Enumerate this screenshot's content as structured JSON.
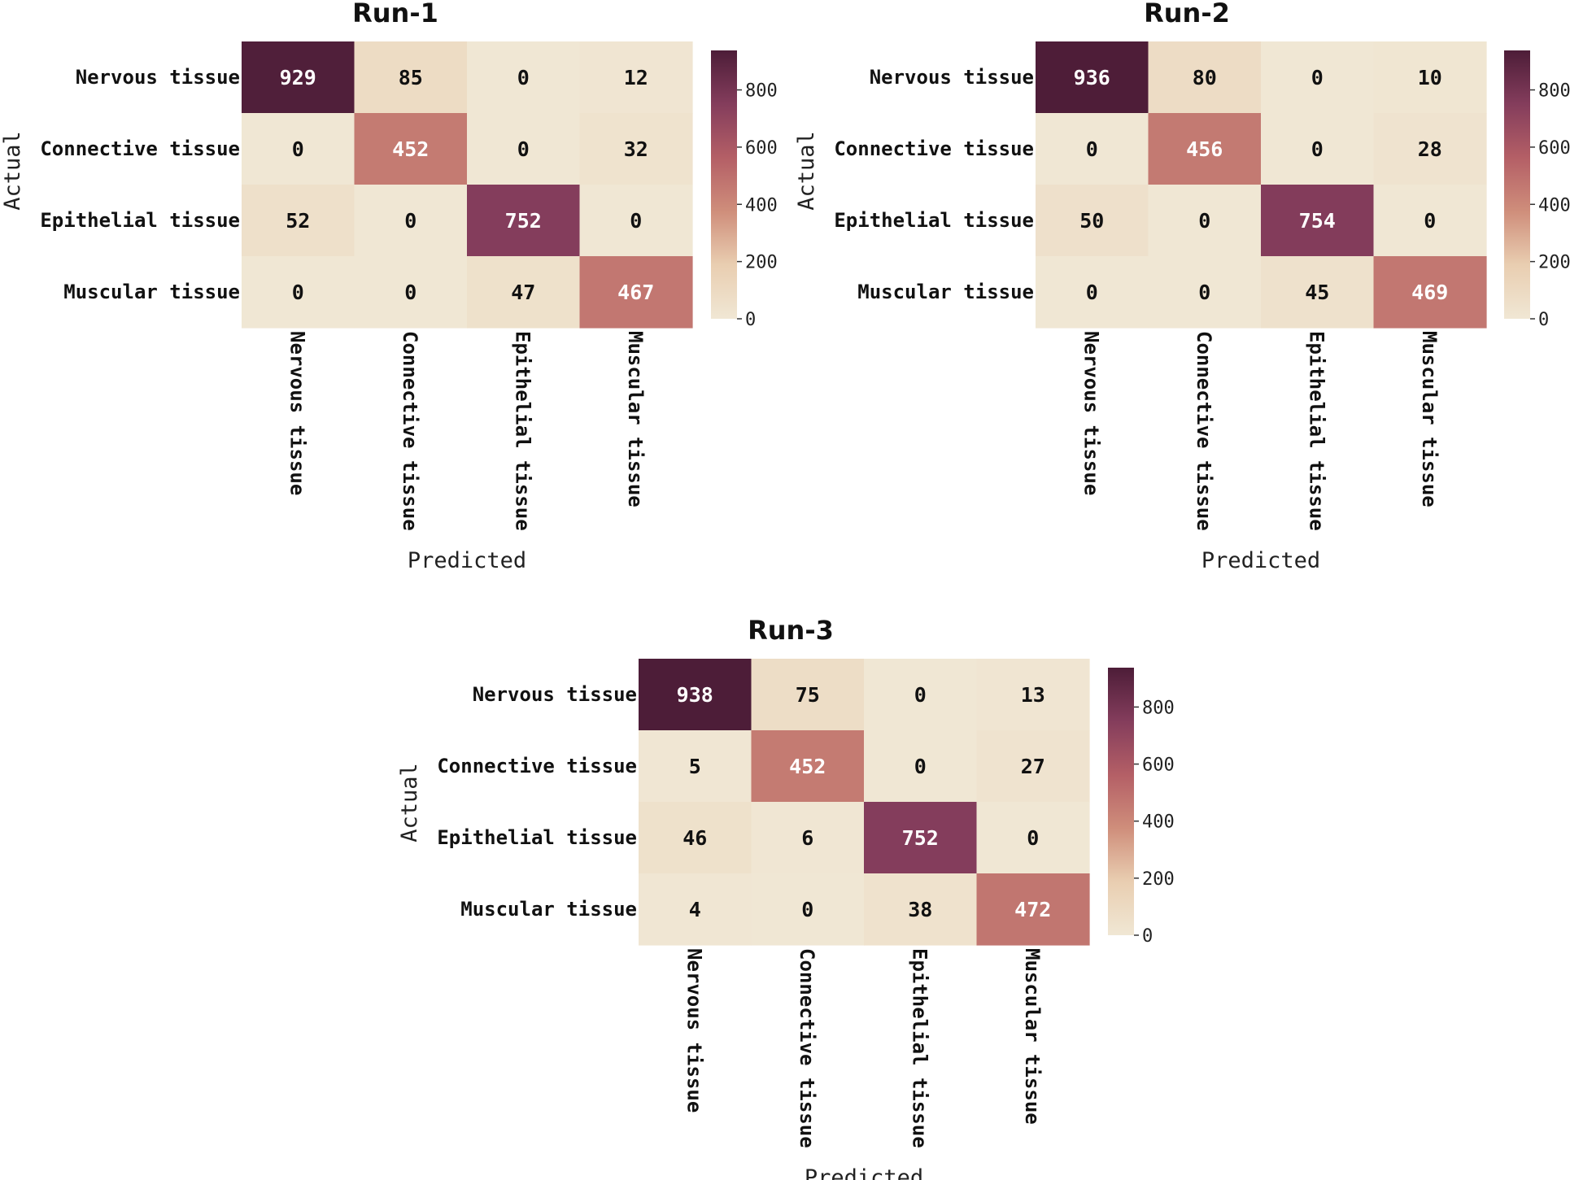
{
  "colors": {
    "colormap": [
      "#f0e7d4",
      "#e9ceb1",
      "#cf8e7b",
      "#b45f66",
      "#843d5c",
      "#4d1d38"
    ],
    "dark_text": "#111111",
    "light_text": "#ffffff"
  },
  "chart_data": [
    {
      "type": "heatmap",
      "title": "Run-1",
      "xlabel": "Predicted",
      "ylabel": "Actual",
      "categories": [
        "Nervous tissue",
        "Connective tissue",
        "Epithelial tissue",
        "Muscular tissue"
      ],
      "matrix": [
        [
          929,
          85,
          0,
          12
        ],
        [
          0,
          452,
          0,
          32
        ],
        [
          52,
          0,
          752,
          0
        ],
        [
          0,
          0,
          47,
          467
        ]
      ],
      "cells": [
        [
          "929",
          "85",
          "0",
          "12"
        ],
        [
          "0",
          "452",
          "0",
          "32"
        ],
        [
          "52",
          "0",
          "752",
          "0"
        ],
        [
          "0",
          "0",
          "47",
          "467"
        ]
      ],
      "colorbar": {
        "min": 0,
        "max": 938,
        "ticks": [
          "0",
          "200",
          "400",
          "600",
          "800"
        ]
      }
    },
    {
      "type": "heatmap",
      "title": "Run-2",
      "xlabel": "Predicted",
      "ylabel": "Actual",
      "categories": [
        "Nervous tissue",
        "Connective tissue",
        "Epithelial tissue",
        "Muscular tissue"
      ],
      "matrix": [
        [
          936,
          80,
          0,
          10
        ],
        [
          0,
          456,
          0,
          28
        ],
        [
          50,
          0,
          754,
          0
        ],
        [
          0,
          0,
          45,
          469
        ]
      ],
      "cells": [
        [
          "936",
          "80",
          "0",
          "10"
        ],
        [
          "0",
          "456",
          "0",
          "28"
        ],
        [
          "50",
          "0",
          "754",
          "0"
        ],
        [
          "0",
          "0",
          "45",
          "469"
        ]
      ],
      "colorbar": {
        "min": 0,
        "max": 938,
        "ticks": [
          "0",
          "200",
          "400",
          "600",
          "800"
        ]
      }
    },
    {
      "type": "heatmap",
      "title": "Run-3",
      "xlabel": "Predicted",
      "ylabel": "Actual",
      "categories": [
        "Nervous tissue",
        "Connective tissue",
        "Epithelial tissue",
        "Muscular tissue"
      ],
      "matrix": [
        [
          938,
          75,
          0,
          13
        ],
        [
          5,
          452,
          0,
          27
        ],
        [
          46,
          6,
          752,
          0
        ],
        [
          4,
          0,
          38,
          472
        ]
      ],
      "cells": [
        [
          "938",
          "75",
          "0",
          "13"
        ],
        [
          "5",
          "452",
          "0",
          "27"
        ],
        [
          "46",
          "6",
          "752",
          "0"
        ],
        [
          "4",
          "0",
          "38",
          "472"
        ]
      ],
      "colorbar": {
        "min": 0,
        "max": 938,
        "ticks": [
          "0",
          "200",
          "400",
          "600",
          "800"
        ]
      }
    }
  ]
}
